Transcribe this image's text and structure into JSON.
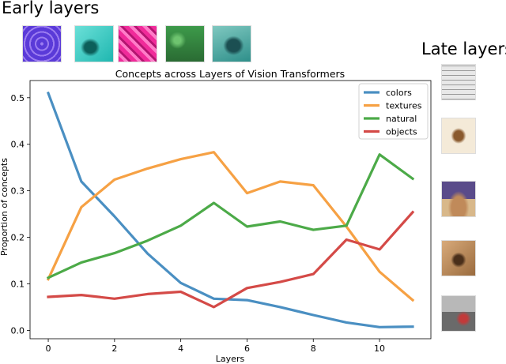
{
  "labels": {
    "early_layers": "Early layers",
    "late_layers": "Late layers"
  },
  "chart_data": {
    "type": "line",
    "title": "Concepts across Layers of Vision Transformers",
    "xlabel": "Layers",
    "ylabel": "Proportion of concepts",
    "x": [
      0,
      1,
      2,
      3,
      4,
      5,
      6,
      7,
      8,
      9,
      10,
      11
    ],
    "xlim": [
      -0.55,
      11.55
    ],
    "ylim": [
      -0.018,
      0.537
    ],
    "xticks": [
      0,
      2,
      4,
      6,
      8,
      10
    ],
    "yticks": [
      0.0,
      0.1,
      0.2,
      0.3,
      0.4,
      0.5
    ],
    "ytick_labels": [
      "0.0",
      "0.1",
      "0.2",
      "0.3",
      "0.4",
      "0.5"
    ],
    "grid": false,
    "legend": "top-right",
    "series": [
      {
        "name": "colors",
        "color": "#4a8fc2",
        "values": [
          0.51,
          0.32,
          0.245,
          0.165,
          0.102,
          0.068,
          0.065,
          0.05,
          0.033,
          0.017,
          0.007,
          0.008
        ]
      },
      {
        "name": "textures",
        "color": "#f6a144",
        "values": [
          0.11,
          0.265,
          0.324,
          0.348,
          0.368,
          0.383,
          0.295,
          0.32,
          0.312,
          0.223,
          0.126,
          0.065
        ]
      },
      {
        "name": "natural",
        "color": "#4caa48",
        "values": [
          0.113,
          0.146,
          0.166,
          0.193,
          0.225,
          0.274,
          0.223,
          0.234,
          0.216,
          0.225,
          0.378,
          0.326
        ]
      },
      {
        "name": "objects",
        "color": "#d44a47",
        "values": [
          0.072,
          0.076,
          0.068,
          0.078,
          0.083,
          0.05,
          0.091,
          0.104,
          0.121,
          0.195,
          0.174,
          0.254
        ]
      }
    ]
  },
  "thumbnails": {
    "early": [
      {
        "name": "purple-web-thumbnail",
        "colors": [
          "#5a3ad8",
          "#9b7cf0",
          "#3a1f9e"
        ]
      },
      {
        "name": "cyan-stingray-thumbnail",
        "colors": [
          "#1fb7b0",
          "#6be0d8",
          "#0c5f5a"
        ]
      },
      {
        "name": "pink-fabric-thumbnail",
        "colors": [
          "#f02b9a",
          "#ff7cc8",
          "#b31470"
        ]
      },
      {
        "name": "green-water-thumbnail",
        "colors": [
          "#3d9a4a",
          "#6ec46f",
          "#2a6b33"
        ]
      },
      {
        "name": "whale-shark-thumbnail",
        "colors": [
          "#2e8f8a",
          "#7fc8c0",
          "#1b4f52"
        ]
      }
    ],
    "late": [
      {
        "name": "newspaper-grid-thumbnail",
        "colors": [
          "#e8e8e8",
          "#9a9a9a",
          "#ffffff"
        ]
      },
      {
        "name": "hummingbird-thumbnail",
        "colors": [
          "#f4ead8",
          "#8a5a2e",
          "#d9c3a2"
        ]
      },
      {
        "name": "dome-building-thumbnail",
        "colors": [
          "#5a4b8a",
          "#c08a5a",
          "#d8b88a"
        ]
      },
      {
        "name": "hands-object-thumbnail",
        "colors": [
          "#9a6b3e",
          "#d8aa7a",
          "#4a2f1a"
        ]
      },
      {
        "name": "rickshaw-street-thumbnail",
        "colors": [
          "#b8b8b8",
          "#6a6a6a",
          "#c23a3a"
        ]
      }
    ]
  }
}
